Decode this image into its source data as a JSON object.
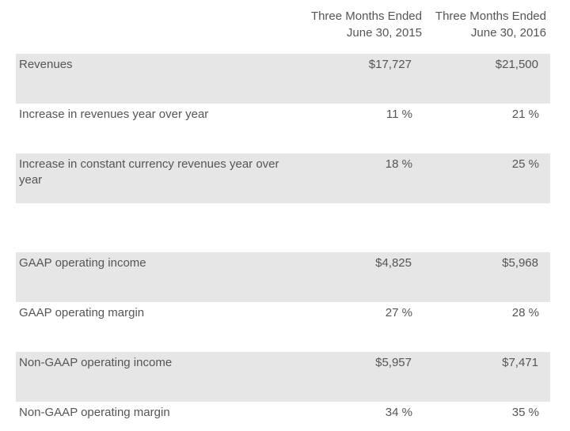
{
  "columns": [
    {
      "line1": "Three Months Ended",
      "line2": "June 30, 2015"
    },
    {
      "line1": "Three Months Ended",
      "line2": "June 30, 2016"
    }
  ],
  "rows": [
    {
      "label": "Revenues",
      "v1": "$17,727",
      "v2": "$21,500"
    },
    {
      "label": "Increase in revenues year over year",
      "v1": "11 %",
      "v2": "21 %"
    },
    {
      "label": "Increase in constant currency revenues year over year",
      "v1": "18 %",
      "v2": "25 %"
    },
    {
      "label": "GAAP operating income",
      "v1": "$4,825",
      "v2": "$5,968"
    },
    {
      "label": "GAAP operating margin",
      "v1": "27 %",
      "v2": "28 %"
    },
    {
      "label": "Non-GAAP operating income",
      "v1": "$5,957",
      "v2": "$7,471"
    },
    {
      "label": "Non-GAAP operating margin",
      "v1": "34 %",
      "v2": "35 %"
    }
  ]
}
